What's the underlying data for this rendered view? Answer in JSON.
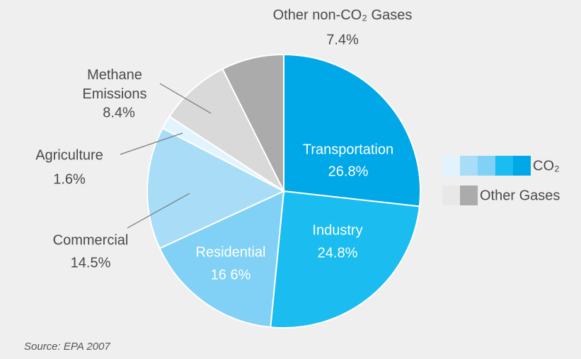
{
  "chart_data": {
    "type": "pie",
    "categories": [
      "Transportation",
      "Industry",
      "Residential",
      "Commercial",
      "Agriculture",
      "Methane Emissions",
      "Other non-CO₂ Gases"
    ],
    "values": [
      26.8,
      24.8,
      16.6,
      14.5,
      1.6,
      8.4,
      7.4
    ],
    "value_labels": [
      "26.8%",
      "24.8%",
      "16 6%",
      "14.5%",
      "1.6%",
      "8.4%",
      "7.4%"
    ],
    "colors": [
      "#00a8e8",
      "#1bbcf0",
      "#80d1f5",
      "#a9ddf7",
      "#e1f4fd",
      "#d9d9d9",
      "#ababac"
    ],
    "legend": [
      {
        "name": "CO₂",
        "colors": [
          "#e1f4fd",
          "#a9ddf7",
          "#80d1f5",
          "#1bbcf0",
          "#00a8e8"
        ]
      },
      {
        "name": "Other Gases",
        "colors": [
          "#e8e8e8",
          "#ababac"
        ]
      }
    ],
    "legend_position": "right",
    "source": "Source: EPA 2007"
  }
}
